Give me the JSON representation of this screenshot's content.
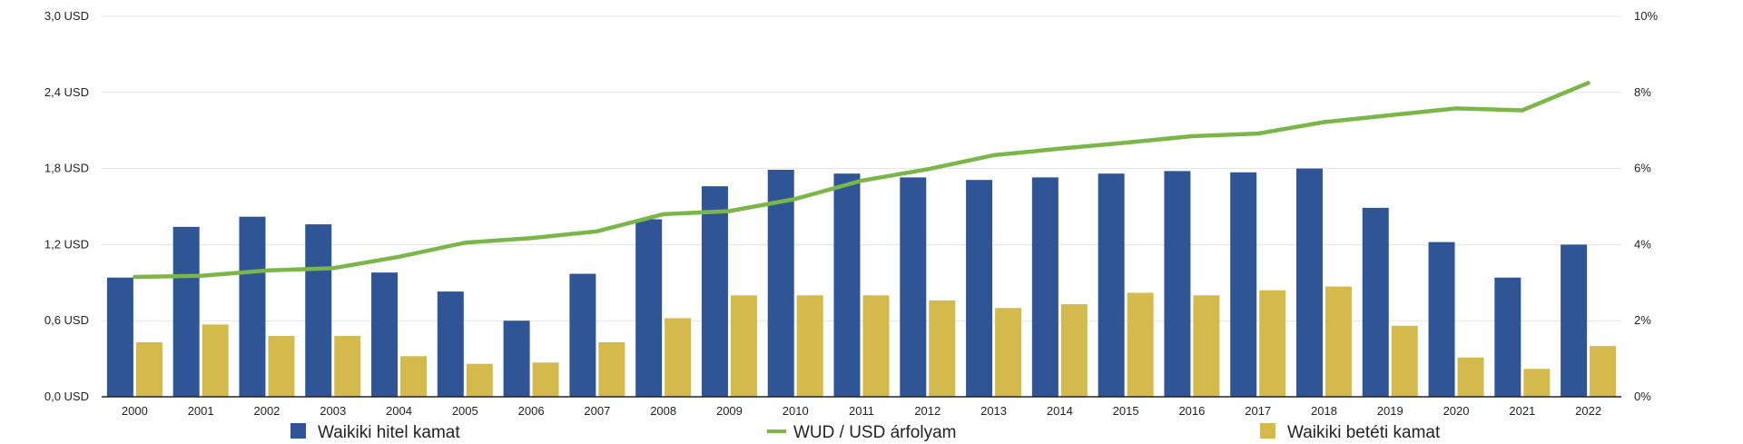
{
  "chart_data": {
    "type": "bar",
    "categories": [
      "2000",
      "2001",
      "2002",
      "2003",
      "2004",
      "2005",
      "2006",
      "2007",
      "2008",
      "2009",
      "2010",
      "2011",
      "2012",
      "2013",
      "2014",
      "2015",
      "2016",
      "2017",
      "2018",
      "2019",
      "2020",
      "2021",
      "2022"
    ],
    "series": [
      {
        "name": "Waikiki hitel kamat",
        "kind": "bar",
        "axis": "left",
        "color": "#2f5597",
        "values": [
          0.94,
          1.34,
          1.42,
          1.36,
          0.98,
          0.83,
          0.6,
          0.97,
          1.4,
          1.66,
          1.79,
          1.76,
          1.73,
          1.71,
          1.73,
          1.76,
          1.78,
          1.77,
          1.8,
          1.49,
          1.22,
          0.94,
          1.2
        ]
      },
      {
        "name": "Waikiki betéti kamat",
        "kind": "bar",
        "axis": "left",
        "color": "#d4b94d",
        "values": [
          0.43,
          0.57,
          0.48,
          0.48,
          0.32,
          0.26,
          0.27,
          0.43,
          0.62,
          0.8,
          0.8,
          0.8,
          0.76,
          0.7,
          0.73,
          0.82,
          0.8,
          0.84,
          0.87,
          0.56,
          0.31,
          0.22,
          0.4
        ]
      },
      {
        "name": "WUD / USD árfolyam",
        "kind": "line",
        "axis": "right",
        "color": "#7ab648",
        "values": [
          3.15,
          3.18,
          3.32,
          3.38,
          3.68,
          4.05,
          4.17,
          4.35,
          4.8,
          4.88,
          5.2,
          5.68,
          5.98,
          6.35,
          6.52,
          6.68,
          6.85,
          6.92,
          7.22,
          7.4,
          7.58,
          7.53,
          8.25
        ]
      }
    ],
    "y_left": {
      "ticks": [
        "0,0 USD",
        "0,6 USD",
        "1,2 USD",
        "1,8 USD",
        "2,4 USD",
        "3,0 USD"
      ],
      "range": [
        0,
        3.0
      ]
    },
    "y_right": {
      "ticks": [
        "0%",
        "2%",
        "4%",
        "6%",
        "8%",
        "10%"
      ],
      "range": [
        0,
        10
      ]
    },
    "grid": true,
    "legend": {
      "placement": "bottom",
      "order": [
        "Waikiki hitel kamat",
        "WUD / USD árfolyam",
        "Waikiki betéti kamat"
      ]
    }
  }
}
